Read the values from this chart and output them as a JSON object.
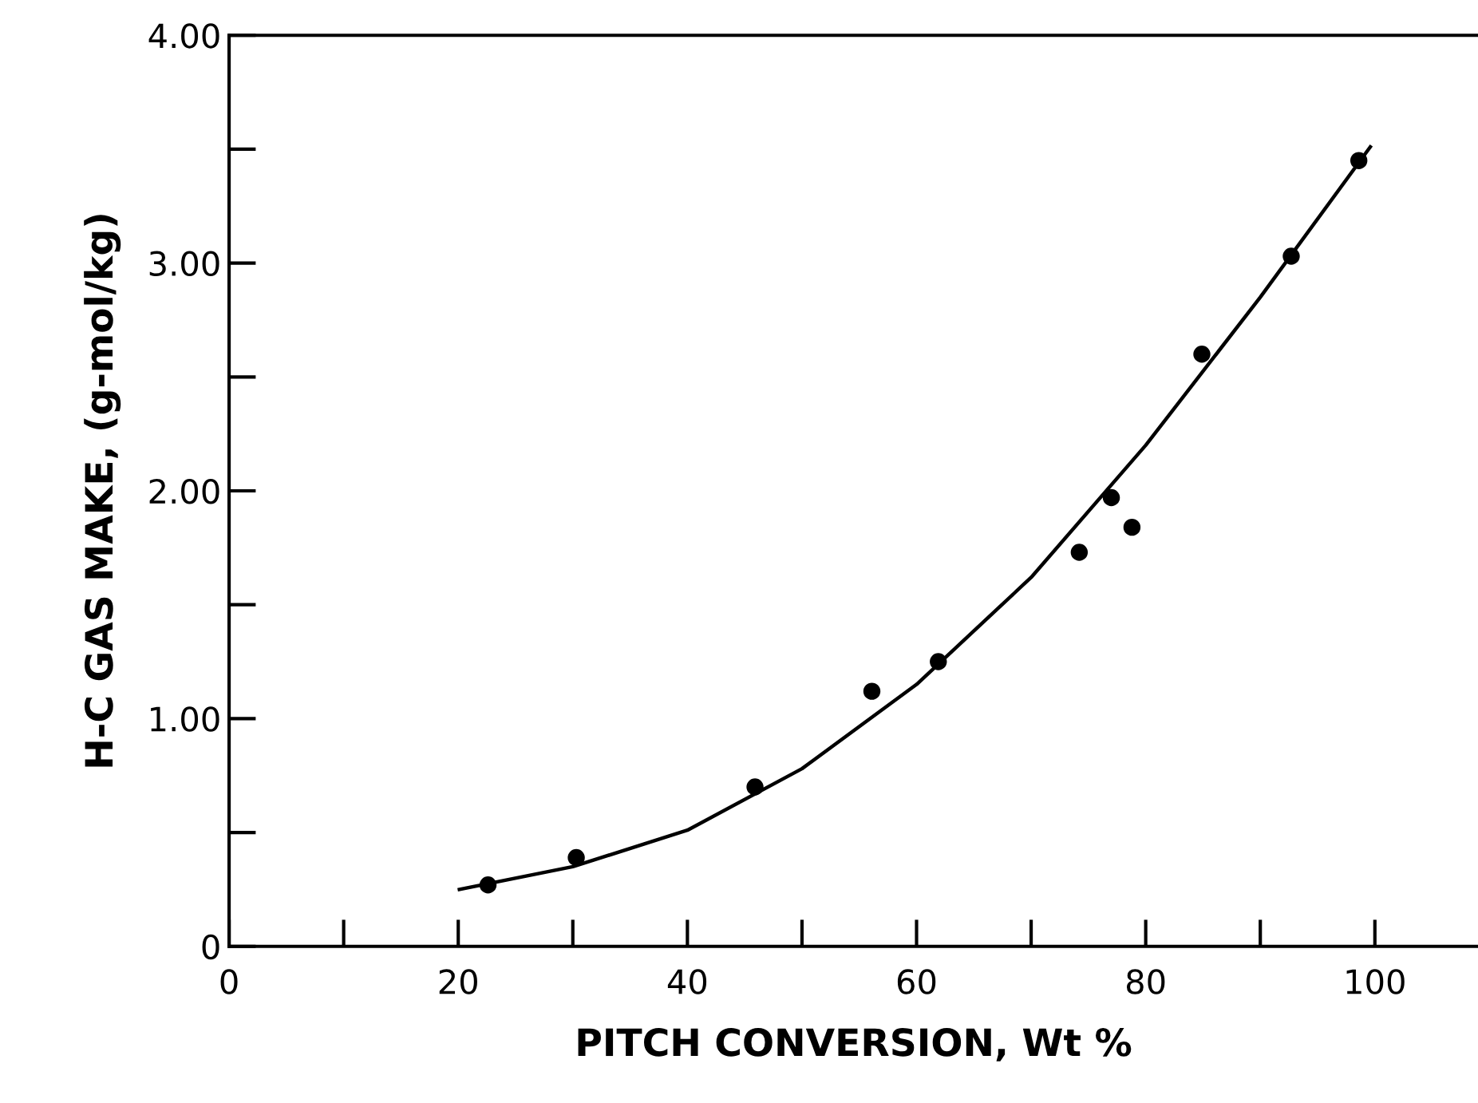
{
  "chart_data": {
    "type": "scatter",
    "xlabel": "PITCH CONVERSION, Wt %",
    "ylabel": "H-C GAS MAKE, (g-mol/kg)",
    "xlim": [
      0,
      109
    ],
    "ylim": [
      0,
      4
    ],
    "xticks": [
      0,
      20,
      40,
      60,
      80,
      100
    ],
    "yticks": [
      {
        "value": 0,
        "label": "0"
      },
      {
        "value": 1,
        "label": "1.00"
      },
      {
        "value": 2,
        "label": "2.00"
      },
      {
        "value": 3,
        "label": "3.00"
      },
      {
        "value": 4,
        "label": "4.00"
      }
    ],
    "grid": false,
    "series": [
      {
        "marker": "circle",
        "color": "#000000",
        "x": [
          22.6,
          30.3,
          45.9,
          56.1,
          61.9,
          74.2,
          77.0,
          78.8,
          84.9,
          92.7,
          98.6
        ],
        "values": [
          0.27,
          0.39,
          0.7,
          1.12,
          1.25,
          1.73,
          1.97,
          1.84,
          2.6,
          3.03,
          3.45
        ]
      },
      {
        "type": "line",
        "marker": "none",
        "color": "#000000",
        "x": [
          20.1,
          30,
          40,
          50,
          60,
          70,
          80,
          90,
          99.6
        ],
        "values": [
          0.25,
          0.35,
          0.51,
          0.78,
          1.15,
          1.62,
          2.2,
          2.85,
          3.51
        ]
      }
    ]
  }
}
